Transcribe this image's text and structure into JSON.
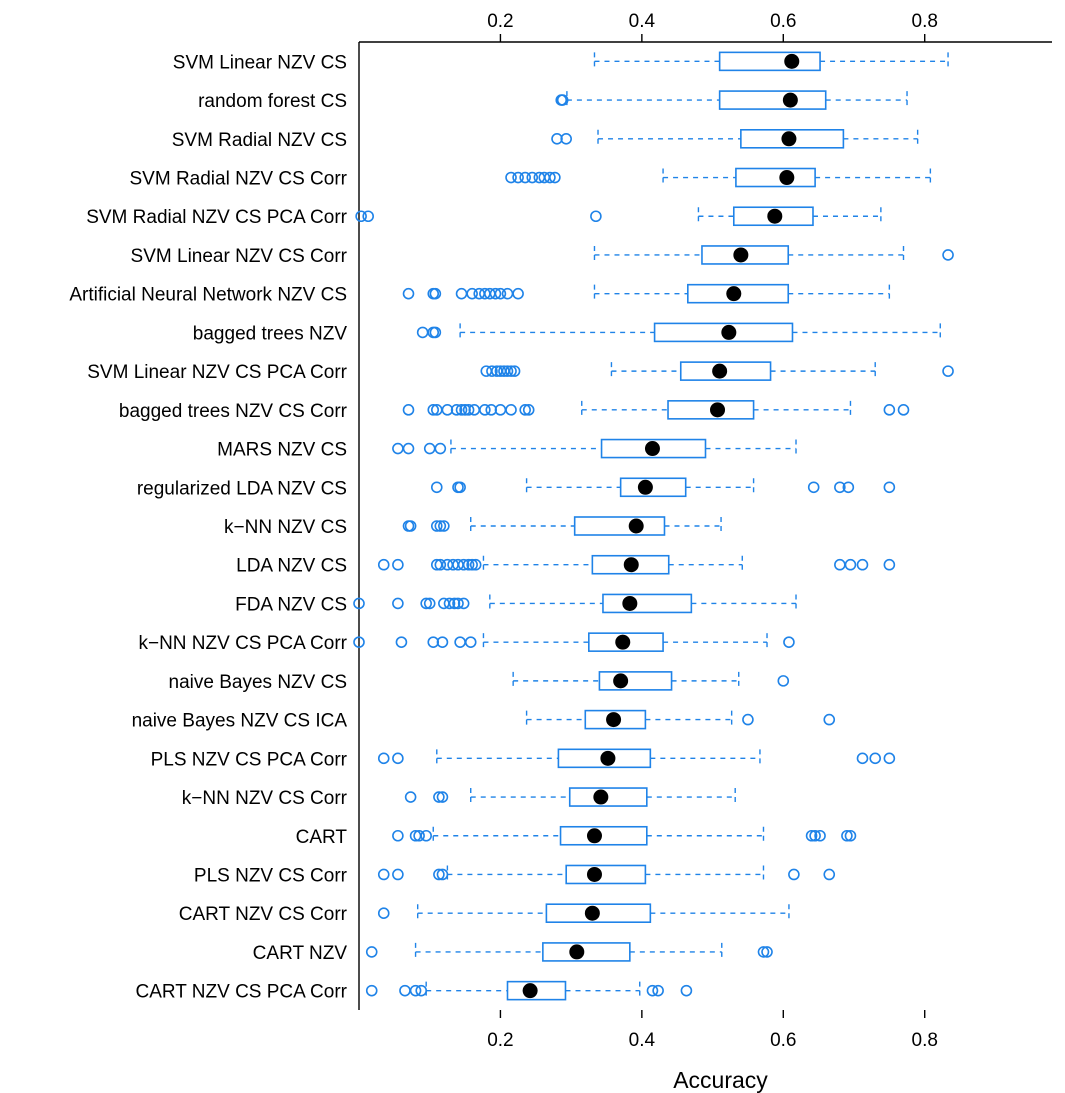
{
  "chart_data": {
    "type": "boxplot",
    "title": "",
    "xlabel": "Accuracy",
    "ylabel": "",
    "xlim": [
      0.0,
      0.98
    ],
    "x_ticks": [
      "0.2",
      "0.4",
      "0.6",
      "0.8"
    ],
    "x_tick_values": [
      0.2,
      0.4,
      0.6,
      0.8
    ],
    "tick_labels_top": true,
    "tick_labels_bottom": true,
    "grid": false,
    "legend": "none",
    "colors": {
      "box": "#1f83e8",
      "median": "#000000",
      "axis": "#000000"
    },
    "series": [
      {
        "name": "SVM Linear NZV CS",
        "whisker_low": 0.333,
        "q1": 0.51,
        "median": 0.612,
        "q3": 0.652,
        "whisker_high": 0.833,
        "outliers": []
      },
      {
        "name": "random forest CS",
        "whisker_low": 0.294,
        "q1": 0.51,
        "median": 0.61,
        "q3": 0.66,
        "whisker_high": 0.775,
        "outliers": [
          0.286,
          0.288
        ]
      },
      {
        "name": "SVM Radial NZV CS",
        "whisker_low": 0.338,
        "q1": 0.54,
        "median": 0.608,
        "q3": 0.685,
        "whisker_high": 0.79,
        "outliers": [
          0.28,
          0.293
        ]
      },
      {
        "name": "SVM Radial NZV CS Corr",
        "whisker_low": 0.43,
        "q1": 0.533,
        "median": 0.605,
        "q3": 0.645,
        "whisker_high": 0.808,
        "outliers": [
          0.215,
          0.225,
          0.235,
          0.245,
          0.255,
          0.262,
          0.27,
          0.277
        ]
      },
      {
        "name": "SVM Radial NZV CS PCA Corr",
        "whisker_low": 0.48,
        "q1": 0.53,
        "median": 0.588,
        "q3": 0.642,
        "whisker_high": 0.738,
        "outliers": [
          0.003,
          0.013,
          0.335
        ]
      },
      {
        "name": "SVM Linear NZV CS Corr",
        "whisker_low": 0.333,
        "q1": 0.485,
        "median": 0.54,
        "q3": 0.607,
        "whisker_high": 0.77,
        "outliers": [
          0.833
        ]
      },
      {
        "name": "Artificial Neural Network NZV CS",
        "whisker_low": 0.333,
        "q1": 0.465,
        "median": 0.53,
        "q3": 0.607,
        "whisker_high": 0.75,
        "outliers": [
          0.07,
          0.105,
          0.108,
          0.145,
          0.16,
          0.17,
          0.178,
          0.185,
          0.193,
          0.2,
          0.21,
          0.225
        ]
      },
      {
        "name": "bagged trees NZV",
        "whisker_low": 0.143,
        "q1": 0.418,
        "median": 0.523,
        "q3": 0.613,
        "whisker_high": 0.822,
        "outliers": [
          0.09,
          0.105,
          0.108
        ]
      },
      {
        "name": "SVM Linear NZV CS PCA Corr",
        "whisker_low": 0.357,
        "q1": 0.455,
        "median": 0.51,
        "q3": 0.582,
        "whisker_high": 0.73,
        "outliers": [
          0.18,
          0.188,
          0.195,
          0.2,
          0.205,
          0.21,
          0.215,
          0.22,
          0.833
        ]
      },
      {
        "name": "bagged trees NZV CS Corr",
        "whisker_low": 0.315,
        "q1": 0.437,
        "median": 0.507,
        "q3": 0.558,
        "whisker_high": 0.695,
        "outliers": [
          0.07,
          0.105,
          0.11,
          0.125,
          0.138,
          0.145,
          0.15,
          0.155,
          0.163,
          0.178,
          0.187,
          0.2,
          0.215,
          0.235,
          0.24,
          0.75,
          0.77
        ]
      },
      {
        "name": "MARS NZV CS",
        "whisker_low": 0.13,
        "q1": 0.343,
        "median": 0.415,
        "q3": 0.49,
        "whisker_high": 0.618,
        "outliers": [
          0.055,
          0.07,
          0.1,
          0.115
        ]
      },
      {
        "name": "regularized LDA NZV CS",
        "whisker_low": 0.237,
        "q1": 0.37,
        "median": 0.405,
        "q3": 0.462,
        "whisker_high": 0.558,
        "outliers": [
          0.11,
          0.14,
          0.143,
          0.643,
          0.68,
          0.692,
          0.75
        ]
      },
      {
        "name": "k−NN NZV CS",
        "whisker_low": 0.158,
        "q1": 0.305,
        "median": 0.392,
        "q3": 0.432,
        "whisker_high": 0.512,
        "outliers": [
          0.07,
          0.073,
          0.11,
          0.115,
          0.12
        ]
      },
      {
        "name": "LDA NZV CS",
        "whisker_low": 0.176,
        "q1": 0.33,
        "median": 0.385,
        "q3": 0.438,
        "whisker_high": 0.542,
        "outliers": [
          0.035,
          0.055,
          0.11,
          0.115,
          0.125,
          0.133,
          0.14,
          0.148,
          0.155,
          0.16,
          0.165,
          0.68,
          0.695,
          0.712,
          0.75
        ]
      },
      {
        "name": "FDA NZV CS",
        "whisker_low": 0.185,
        "q1": 0.345,
        "median": 0.383,
        "q3": 0.47,
        "whisker_high": 0.618,
        "outliers": [
          0.0,
          0.055,
          0.095,
          0.1,
          0.12,
          0.128,
          0.135,
          0.14,
          0.148
        ]
      },
      {
        "name": "k−NN NZV CS PCA Corr",
        "whisker_low": 0.176,
        "q1": 0.325,
        "median": 0.373,
        "q3": 0.43,
        "whisker_high": 0.577,
        "outliers": [
          0.0,
          0.06,
          0.105,
          0.118,
          0.143,
          0.158,
          0.608
        ]
      },
      {
        "name": "naive Bayes NZV CS",
        "whisker_low": 0.218,
        "q1": 0.34,
        "median": 0.37,
        "q3": 0.442,
        "whisker_high": 0.537,
        "outliers": [
          0.6
        ]
      },
      {
        "name": "naive Bayes NZV CS ICA",
        "whisker_low": 0.237,
        "q1": 0.32,
        "median": 0.36,
        "q3": 0.405,
        "whisker_high": 0.527,
        "outliers": [
          0.55,
          0.665
        ]
      },
      {
        "name": "PLS NZV CS PCA Corr",
        "whisker_low": 0.11,
        "q1": 0.282,
        "median": 0.352,
        "q3": 0.412,
        "whisker_high": 0.567,
        "outliers": [
          0.035,
          0.055,
          0.712,
          0.73,
          0.75
        ]
      },
      {
        "name": "k−NN NZV CS Corr",
        "whisker_low": 0.158,
        "q1": 0.298,
        "median": 0.342,
        "q3": 0.407,
        "whisker_high": 0.532,
        "outliers": [
          0.073,
          0.113,
          0.118
        ]
      },
      {
        "name": "CART",
        "whisker_low": 0.105,
        "q1": 0.285,
        "median": 0.333,
        "q3": 0.407,
        "whisker_high": 0.572,
        "outliers": [
          0.055,
          0.08,
          0.085,
          0.095,
          0.64,
          0.645,
          0.652,
          0.69,
          0.695
        ]
      },
      {
        "name": "PLS NZV CS Corr",
        "whisker_low": 0.125,
        "q1": 0.293,
        "median": 0.333,
        "q3": 0.405,
        "whisker_high": 0.572,
        "outliers": [
          0.035,
          0.055,
          0.113,
          0.118,
          0.615,
          0.665
        ]
      },
      {
        "name": "CART NZV CS Corr",
        "whisker_low": 0.083,
        "q1": 0.265,
        "median": 0.33,
        "q3": 0.412,
        "whisker_high": 0.608,
        "outliers": [
          0.035
        ]
      },
      {
        "name": "CART NZV",
        "whisker_low": 0.08,
        "q1": 0.26,
        "median": 0.308,
        "q3": 0.383,
        "whisker_high": 0.513,
        "outliers": [
          0.018,
          0.572,
          0.577
        ]
      },
      {
        "name": "CART NZV CS PCA Corr",
        "whisker_low": 0.095,
        "q1": 0.21,
        "median": 0.242,
        "q3": 0.292,
        "whisker_high": 0.397,
        "outliers": [
          0.018,
          0.065,
          0.08,
          0.088,
          0.415,
          0.423,
          0.463
        ]
      }
    ]
  }
}
